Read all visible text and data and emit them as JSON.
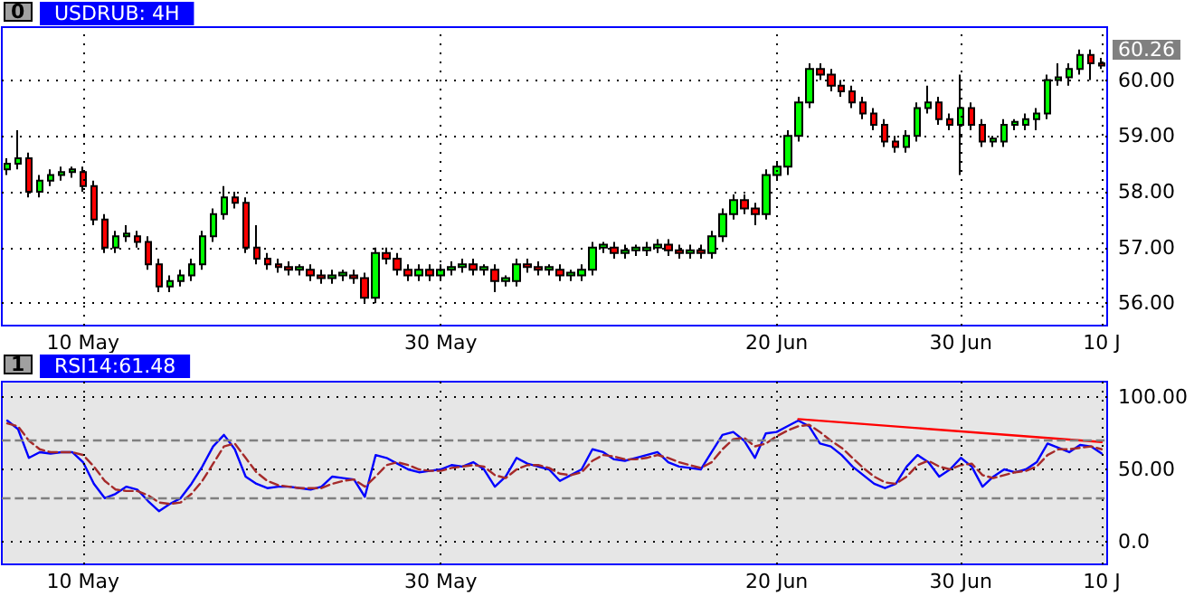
{
  "chart_data": [
    {
      "type": "candlestick",
      "title": "USDRUB: 4H",
      "grid": true,
      "annotations": [
        "0",
        "60.26"
      ],
      "categories": [
        null,
        null,
        null,
        null,
        null,
        null,
        null,
        "10 May",
        null,
        null,
        null,
        null,
        null,
        null,
        null,
        null,
        null,
        null,
        null,
        null,
        null,
        null,
        null,
        null,
        null,
        null,
        null,
        null,
        null,
        null,
        null,
        null,
        null,
        null,
        null,
        null,
        null,
        null,
        null,
        null,
        "30 May",
        null,
        null,
        null,
        null,
        null,
        null,
        null,
        null,
        null,
        null,
        null,
        null,
        null,
        null,
        null,
        null,
        null,
        null,
        null,
        null,
        null,
        null,
        null,
        null,
        null,
        null,
        null,
        null,
        null,
        null,
        "20 Jun",
        null,
        null,
        null,
        null,
        null,
        null,
        null,
        null,
        null,
        null,
        null,
        null,
        null,
        null,
        null,
        null,
        "30 Jun",
        null,
        null,
        null,
        null,
        null,
        null,
        null,
        null,
        null,
        null,
        null,
        null,
        "10 J"
      ],
      "ohlc": [
        [
          58.4,
          58.6,
          58.3,
          58.5
        ],
        [
          58.5,
          59.1,
          58.4,
          58.6
        ],
        [
          58.6,
          58.7,
          57.9,
          58.0
        ],
        [
          58.0,
          58.3,
          57.9,
          58.2
        ],
        [
          58.2,
          58.4,
          58.1,
          58.3
        ],
        [
          58.3,
          58.45,
          58.2,
          58.35
        ],
        [
          58.35,
          58.45,
          58.25,
          58.4
        ],
        [
          58.35,
          58.45,
          58.0,
          58.1
        ],
        [
          58.1,
          58.2,
          57.4,
          57.5
        ],
        [
          57.5,
          57.6,
          56.9,
          57.0
        ],
        [
          57.0,
          57.3,
          56.9,
          57.2
        ],
        [
          57.2,
          57.4,
          57.1,
          57.25
        ],
        [
          57.2,
          57.3,
          57.0,
          57.1
        ],
        [
          57.1,
          57.2,
          56.6,
          56.7
        ],
        [
          56.7,
          56.8,
          56.2,
          56.3
        ],
        [
          56.3,
          56.5,
          56.2,
          56.4
        ],
        [
          56.4,
          56.6,
          56.3,
          56.5
        ],
        [
          56.5,
          56.8,
          56.4,
          56.7
        ],
        [
          56.7,
          57.3,
          56.6,
          57.2
        ],
        [
          57.2,
          57.7,
          57.1,
          57.6
        ],
        [
          57.6,
          58.1,
          57.5,
          57.9
        ],
        [
          57.9,
          58.0,
          57.7,
          57.8
        ],
        [
          57.8,
          57.9,
          56.9,
          57.0
        ],
        [
          57.0,
          57.4,
          56.7,
          56.8
        ],
        [
          56.8,
          56.9,
          56.6,
          56.7
        ],
        [
          56.7,
          56.8,
          56.55,
          56.65
        ],
        [
          56.65,
          56.75,
          56.5,
          56.6
        ],
        [
          56.6,
          56.7,
          56.5,
          56.65
        ],
        [
          56.6,
          56.7,
          56.4,
          56.5
        ],
        [
          56.5,
          56.6,
          56.35,
          56.45
        ],
        [
          56.45,
          56.6,
          56.35,
          56.5
        ],
        [
          56.5,
          56.6,
          56.4,
          56.55
        ],
        [
          56.5,
          56.6,
          56.35,
          56.45
        ],
        [
          56.45,
          56.55,
          56.0,
          56.1
        ],
        [
          56.1,
          57.0,
          56.0,
          56.9
        ],
        [
          56.9,
          57.0,
          56.7,
          56.8
        ],
        [
          56.8,
          56.9,
          56.5,
          56.6
        ],
        [
          56.6,
          56.7,
          56.4,
          56.5
        ],
        [
          56.5,
          56.7,
          56.4,
          56.6
        ],
        [
          56.6,
          56.7,
          56.4,
          56.5
        ],
        [
          56.5,
          56.7,
          56.4,
          56.6
        ],
        [
          56.6,
          56.75,
          56.5,
          56.65
        ],
        [
          56.65,
          56.8,
          56.55,
          56.7
        ],
        [
          56.7,
          56.8,
          56.5,
          56.6
        ],
        [
          56.6,
          56.7,
          56.5,
          56.65
        ],
        [
          56.6,
          56.7,
          56.2,
          56.4
        ],
        [
          56.4,
          56.5,
          56.3,
          56.45
        ],
        [
          56.4,
          56.8,
          56.3,
          56.7
        ],
        [
          56.7,
          56.8,
          56.55,
          56.65
        ],
        [
          56.65,
          56.75,
          56.5,
          56.6
        ],
        [
          56.6,
          56.7,
          56.5,
          56.65
        ],
        [
          56.6,
          56.7,
          56.4,
          56.5
        ],
        [
          56.5,
          56.6,
          56.4,
          56.55
        ],
        [
          56.5,
          56.7,
          56.4,
          56.6
        ],
        [
          56.6,
          57.1,
          56.5,
          57.0
        ],
        [
          57.0,
          57.1,
          56.9,
          57.05
        ],
        [
          57.0,
          57.1,
          56.8,
          56.9
        ],
        [
          56.9,
          57.05,
          56.8,
          56.95
        ],
        [
          56.95,
          57.05,
          56.85,
          57.0
        ],
        [
          56.95,
          57.1,
          56.85,
          57.0
        ],
        [
          57.0,
          57.15,
          56.9,
          57.05
        ],
        [
          57.05,
          57.15,
          56.85,
          56.95
        ],
        [
          56.95,
          57.05,
          56.8,
          56.9
        ],
        [
          56.9,
          57.05,
          56.8,
          56.95
        ],
        [
          56.95,
          57.05,
          56.8,
          56.9
        ],
        [
          56.9,
          57.3,
          56.8,
          57.2
        ],
        [
          57.2,
          57.7,
          57.1,
          57.6
        ],
        [
          57.6,
          57.95,
          57.5,
          57.85
        ],
        [
          57.85,
          57.95,
          57.6,
          57.7
        ],
        [
          57.7,
          57.8,
          57.4,
          57.6
        ],
        [
          57.6,
          58.4,
          57.5,
          58.3
        ],
        [
          58.3,
          58.55,
          58.2,
          58.45
        ],
        [
          58.45,
          59.1,
          58.3,
          59.0
        ],
        [
          59.0,
          59.7,
          58.9,
          59.6
        ],
        [
          59.6,
          60.3,
          59.5,
          60.2
        ],
        [
          60.2,
          60.3,
          60.0,
          60.1
        ],
        [
          60.1,
          60.2,
          59.8,
          59.9
        ],
        [
          59.9,
          60.0,
          59.7,
          59.8
        ],
        [
          59.8,
          59.9,
          59.5,
          59.6
        ],
        [
          59.6,
          59.7,
          59.3,
          59.4
        ],
        [
          59.4,
          59.5,
          59.1,
          59.2
        ],
        [
          59.2,
          59.3,
          58.8,
          58.9
        ],
        [
          58.9,
          59.0,
          58.7,
          58.8
        ],
        [
          58.8,
          59.1,
          58.7,
          59.0
        ],
        [
          59.0,
          59.6,
          58.9,
          59.5
        ],
        [
          59.5,
          59.9,
          59.4,
          59.6
        ],
        [
          59.6,
          59.7,
          59.2,
          59.3
        ],
        [
          59.3,
          59.4,
          59.1,
          59.2
        ],
        [
          59.2,
          60.1,
          58.3,
          59.5
        ],
        [
          59.5,
          59.6,
          59.1,
          59.2
        ],
        [
          59.2,
          59.3,
          58.8,
          58.9
        ],
        [
          58.9,
          59.0,
          58.8,
          58.95
        ],
        [
          58.9,
          59.3,
          58.8,
          59.2
        ],
        [
          59.2,
          59.3,
          59.1,
          59.25
        ],
        [
          59.2,
          59.4,
          59.1,
          59.3
        ],
        [
          59.3,
          59.5,
          59.1,
          59.4
        ],
        [
          59.4,
          60.1,
          59.3,
          60.0
        ],
        [
          60.0,
          60.3,
          59.9,
          60.05
        ],
        [
          60.05,
          60.3,
          59.9,
          60.2
        ],
        [
          60.2,
          60.55,
          60.1,
          60.45
        ],
        [
          60.45,
          60.55,
          60.0,
          60.3
        ],
        [
          60.3,
          60.4,
          60.2,
          60.26
        ]
      ],
      "colors": [
        "#00ff00",
        "#00ff00",
        "#ff0000",
        "#00ff00",
        "#00ff00",
        "#00ff00",
        "#00ff00",
        "#ff0000",
        "#ff0000",
        "#ff0000",
        "#00ff00",
        "#00ff00",
        "#ff0000",
        "#ff0000",
        "#ff0000",
        "#00ff00",
        "#00ff00",
        "#00ff00",
        "#00ff00",
        "#00ff00",
        "#00ff00",
        "#ff0000",
        "#ff0000",
        "#ff0000",
        "#ff0000",
        "#ff0000",
        "#ff0000",
        "#00ff00",
        "#ff0000",
        "#ff0000",
        "#00ff00",
        "#00ff00",
        "#ff0000",
        "#ff0000",
        "#00ff00",
        "#ff0000",
        "#ff0000",
        "#ff0000",
        "#00ff00",
        "#ff0000",
        "#00ff00",
        "#00ff00",
        "#00ff00",
        "#ff0000",
        "#00ff00",
        "#ff0000",
        "#00ff00",
        "#00ff00",
        "#ff0000",
        "#ff0000",
        "#00ff00",
        "#ff0000",
        "#00ff00",
        "#00ff00",
        "#00ff00",
        "#00ff00",
        "#ff0000",
        "#00ff00",
        "#00ff00",
        "#00ff00",
        "#00ff00",
        "#ff0000",
        "#ff0000",
        "#00ff00",
        "#ff0000",
        "#00ff00",
        "#00ff00",
        "#00ff00",
        "#ff0000",
        "#ff0000",
        "#00ff00",
        "#00ff00",
        "#00ff00",
        "#00ff00",
        "#00ff00",
        "#ff0000",
        "#ff0000",
        "#ff0000",
        "#ff0000",
        "#ff0000",
        "#ff0000",
        "#ff0000",
        "#ff0000",
        "#00ff00",
        "#00ff00",
        "#00ff00",
        "#ff0000",
        "#ff0000",
        "#00ff00",
        "#ff0000",
        "#ff0000",
        "#00ff00",
        "#00ff00",
        "#00ff00",
        "#00ff00",
        "#00ff00",
        "#00ff00",
        "#00ff00",
        "#00ff00",
        "#00ff00",
        "#ff0000",
        "#ff0000"
      ],
      "ylim": [
        55.6,
        60.95
      ],
      "yticks": [
        {
          "value": 56,
          "label": "56.00"
        },
        {
          "value": 57,
          "label": "57.00"
        },
        {
          "value": 58,
          "label": "58.00"
        },
        {
          "value": 59,
          "label": "59.00"
        },
        {
          "value": 60,
          "label": "60.00"
        }
      ]
    },
    {
      "type": "line",
      "title": "RSI14:61.48",
      "grid": true,
      "marker": "none",
      "annotations": [
        "1"
      ],
      "categories": [
        null,
        null,
        null,
        null,
        null,
        null,
        null,
        "10 May",
        null,
        null,
        null,
        null,
        null,
        null,
        null,
        null,
        null,
        null,
        null,
        null,
        null,
        null,
        null,
        null,
        null,
        null,
        null,
        null,
        null,
        null,
        null,
        null,
        null,
        null,
        null,
        null,
        null,
        null,
        null,
        null,
        "30 May",
        null,
        null,
        null,
        null,
        null,
        null,
        null,
        null,
        null,
        null,
        null,
        null,
        null,
        null,
        null,
        null,
        null,
        null,
        null,
        null,
        null,
        null,
        null,
        null,
        null,
        null,
        null,
        null,
        null,
        null,
        "20 Jun",
        null,
        null,
        null,
        null,
        null,
        null,
        null,
        null,
        null,
        null,
        null,
        null,
        null,
        null,
        null,
        null,
        "30 Jun",
        null,
        null,
        null,
        null,
        null,
        null,
        null,
        null,
        null,
        null,
        null,
        null,
        "10 J"
      ],
      "series": [
        {
          "color": "#0000ff",
          "line_style": "solid",
          "values": [
            84,
            78,
            58,
            62,
            61,
            62,
            62,
            55,
            40,
            30,
            33,
            38,
            36,
            28,
            21,
            26,
            30,
            40,
            52,
            66,
            74,
            64,
            45,
            40,
            37,
            38,
            38,
            37,
            36,
            38,
            45,
            44,
            43,
            31,
            60,
            58,
            54,
            50,
            48,
            49,
            50,
            53,
            52,
            55,
            50,
            38,
            45,
            58,
            54,
            52,
            50,
            42,
            46,
            50,
            64,
            62,
            57,
            56,
            58,
            60,
            62,
            55,
            52,
            51,
            50,
            62,
            74,
            76,
            70,
            58,
            75,
            76,
            80,
            84,
            80,
            68,
            66,
            60,
            52,
            46,
            40,
            37,
            40,
            52,
            60,
            55,
            45,
            50,
            58,
            52,
            38,
            45,
            50,
            48,
            50,
            55,
            68,
            65,
            62,
            67,
            66,
            61
          ]
        },
        {
          "color": "#a52a2a",
          "line_style": "dashed",
          "values": [
            82,
            80,
            70,
            64,
            62,
            62,
            62,
            60,
            52,
            42,
            36,
            35,
            35,
            32,
            27,
            26,
            27,
            33,
            42,
            54,
            66,
            68,
            58,
            48,
            42,
            39,
            38,
            37,
            37,
            37,
            40,
            42,
            43,
            38,
            45,
            53,
            55,
            53,
            50,
            49,
            49,
            51,
            52,
            53,
            52,
            46,
            44,
            50,
            53,
            53,
            51,
            47,
            46,
            48,
            56,
            60,
            59,
            57,
            57,
            58,
            60,
            58,
            55,
            53,
            51,
            55,
            64,
            71,
            72,
            66,
            68,
            73,
            77,
            80,
            81,
            76,
            70,
            65,
            58,
            51,
            45,
            41,
            40,
            45,
            53,
            56,
            52,
            50,
            53,
            54,
            46,
            44,
            46,
            48,
            49,
            52,
            60,
            64,
            64,
            65,
            66,
            64
          ]
        },
        {
          "color": "#ff0000",
          "line_style": "solid",
          "values": [
            null,
            null,
            null,
            null,
            null,
            null,
            null,
            null,
            null,
            null,
            null,
            null,
            null,
            null,
            null,
            null,
            null,
            null,
            null,
            null,
            null,
            null,
            null,
            null,
            null,
            null,
            null,
            null,
            null,
            null,
            null,
            null,
            null,
            null,
            null,
            null,
            null,
            null,
            null,
            null,
            null,
            null,
            null,
            null,
            null,
            null,
            null,
            null,
            null,
            null,
            null,
            null,
            null,
            null,
            null,
            null,
            null,
            null,
            null,
            null,
            null,
            null,
            null,
            null,
            null,
            null,
            null,
            null,
            null,
            null,
            null,
            null,
            null,
            85,
            null,
            null,
            null,
            null,
            null,
            null,
            null,
            null,
            null,
            null,
            null,
            null,
            null,
            null,
            null,
            null,
            null,
            null,
            null,
            null,
            null,
            null,
            null,
            null,
            null,
            null,
            null,
            69
          ]
        }
      ],
      "ref_lines": [
        {
          "axis": "y",
          "value": 70,
          "color": "#808080",
          "line_style": "dashed"
        },
        {
          "axis": "y",
          "value": 30,
          "color": "#808080",
          "line_style": "dashed"
        }
      ],
      "ylim": [
        -16,
        111
      ],
      "yticks": [
        {
          "value": 0,
          "label": "0.0"
        },
        {
          "value": 50,
          "label": "50.00"
        },
        {
          "value": 100,
          "label": "100.00"
        }
      ]
    }
  ]
}
